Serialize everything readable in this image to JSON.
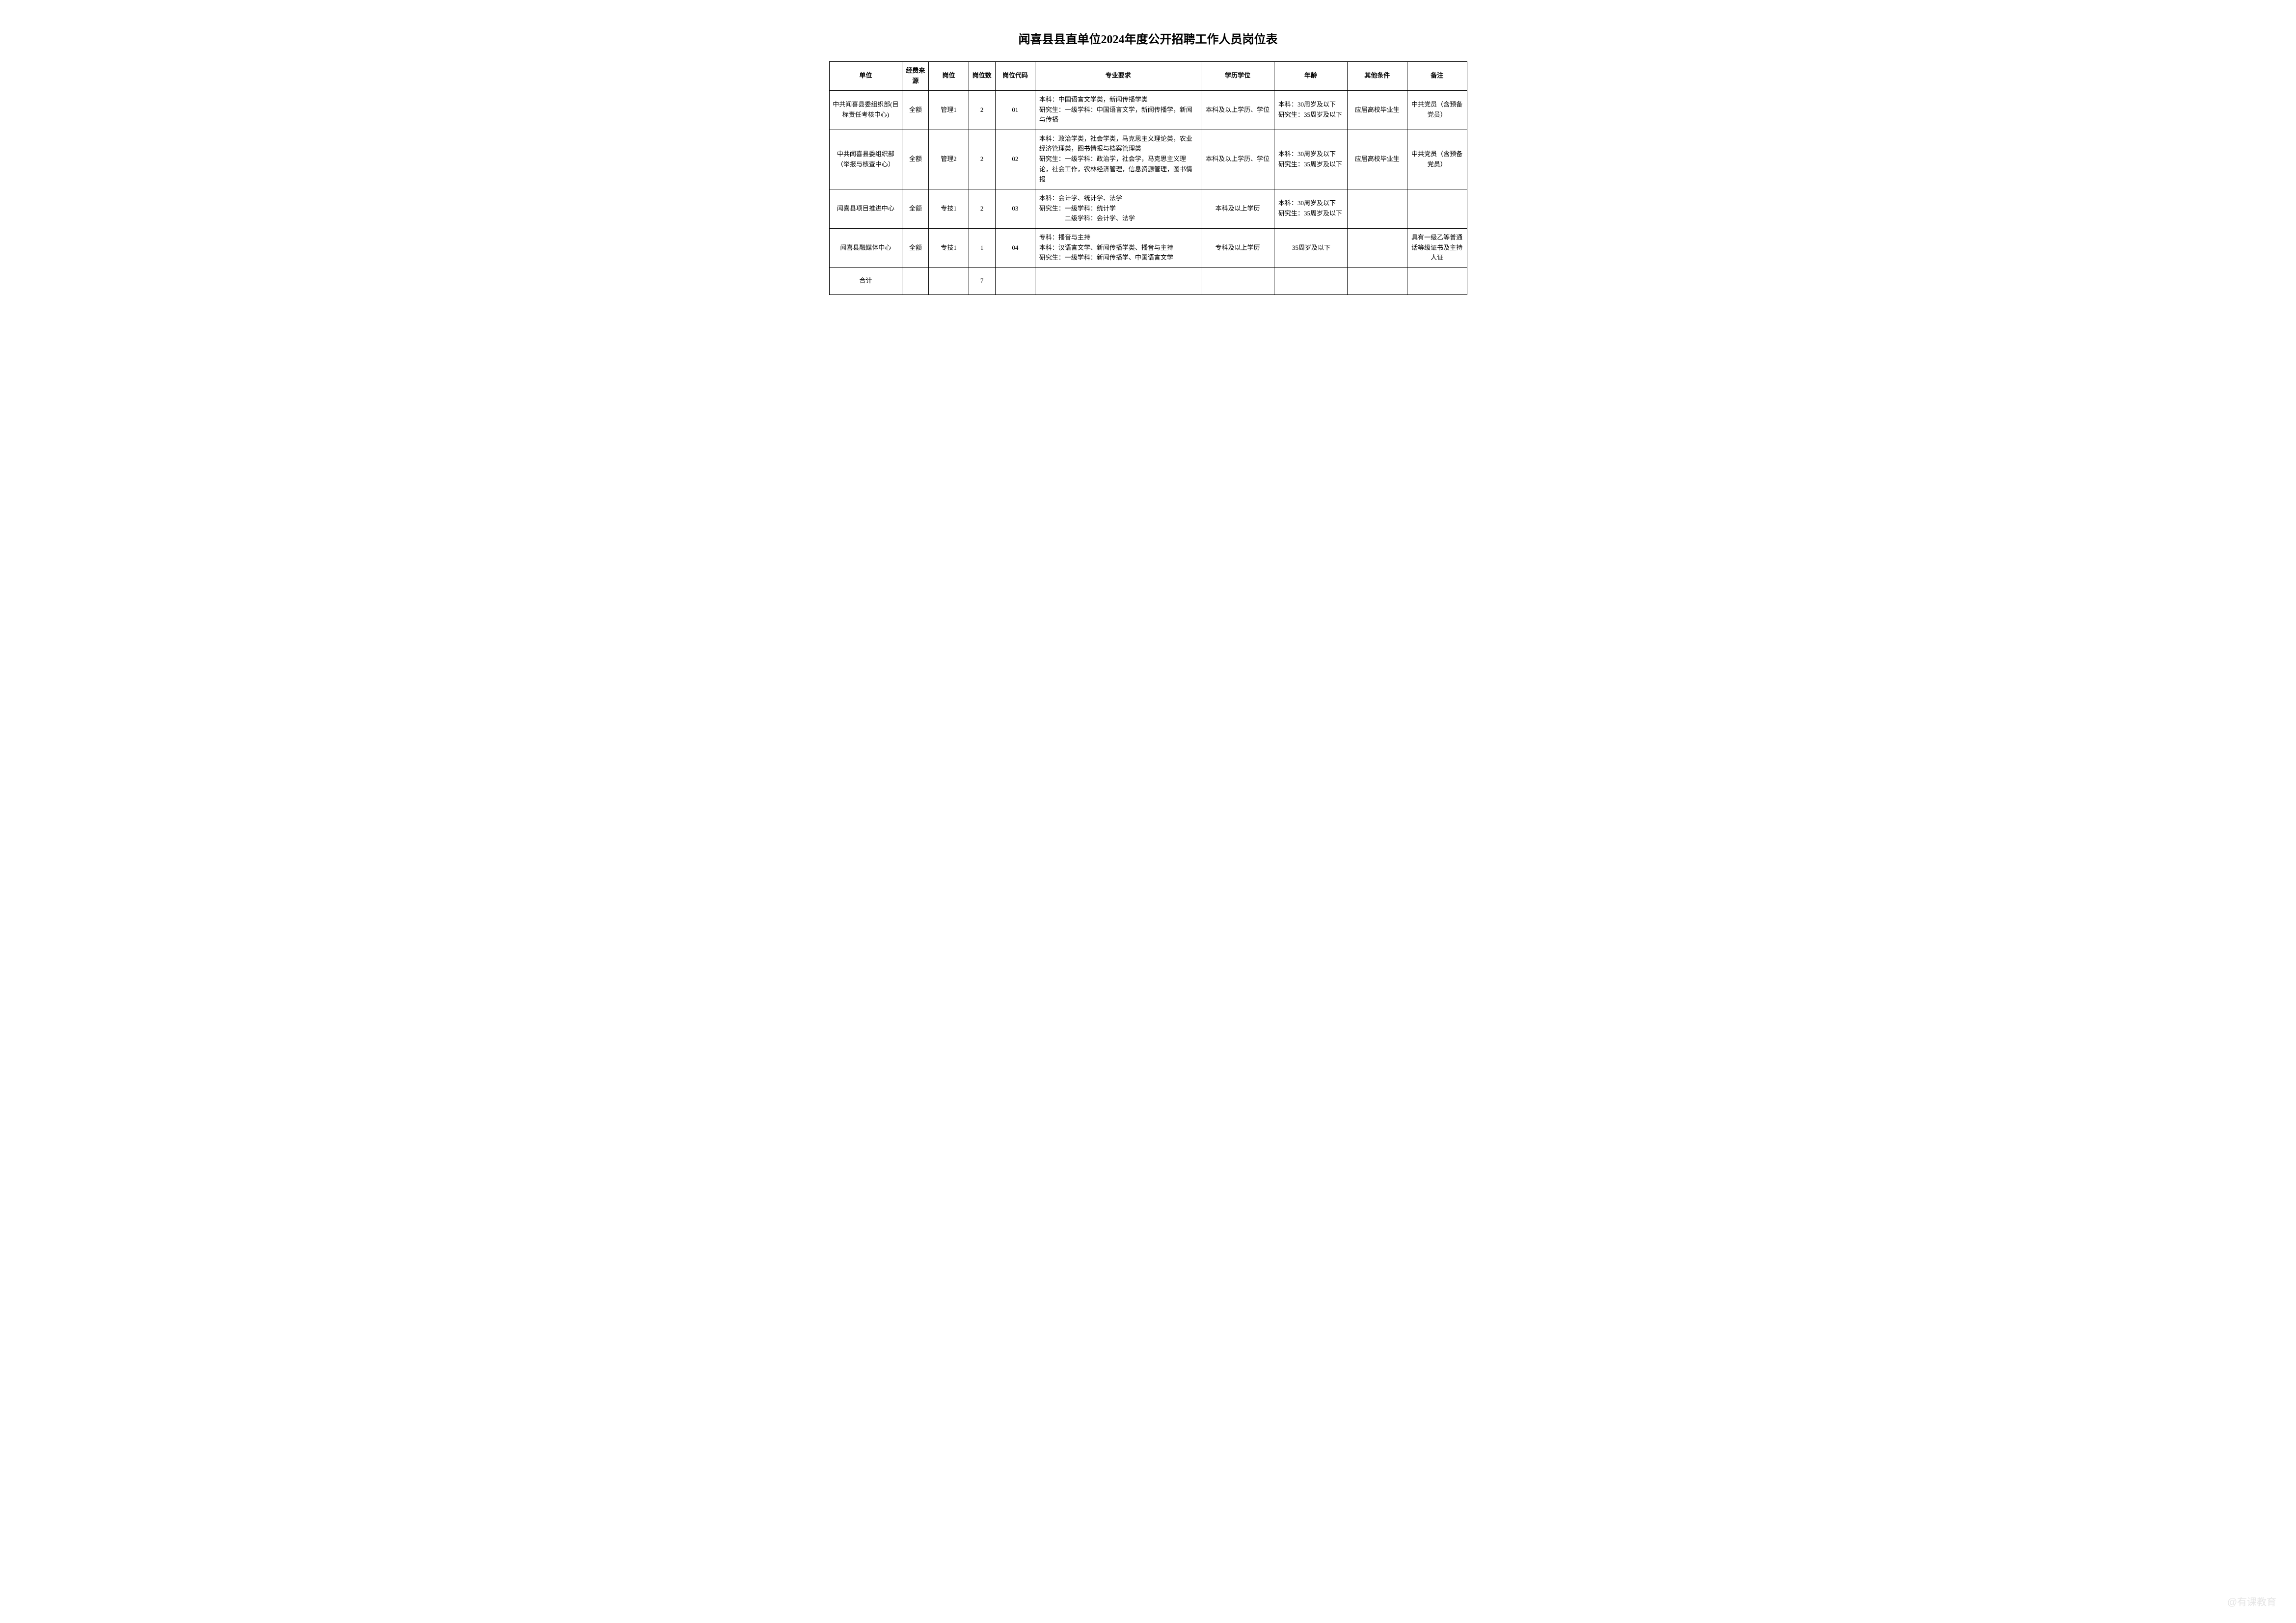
{
  "title": "闻喜县县直单位2024年度公开招聘工作人员岗位表",
  "headers": {
    "unit": "单位",
    "funding": "经费来源",
    "position": "岗位",
    "count": "岗位数",
    "code": "岗位代码",
    "requirements": "专业要求",
    "education": "学历学位",
    "age": "年龄",
    "other": "其他条件",
    "remarks": "备注"
  },
  "rows": [
    {
      "unit": "中共闻喜县委组织部(目标责任考核中心)",
      "funding": "全额",
      "position": "管理1",
      "count": "2",
      "code": "01",
      "requirements": "本科：中国语言文学类，新闻传播学类\n研究生：一级学科：中国语言文学，新闻传播学，新闻与传播",
      "education": "本科及以上学历、学位",
      "age": "本科：30周岁及以下\n研究生：35周岁及以下",
      "other": "应届高校毕业生",
      "remarks": "中共党员（含预备党员）"
    },
    {
      "unit": "中共闻喜县委组织部（举报与核查中心）",
      "funding": "全额",
      "position": "管理2",
      "count": "2",
      "code": "02",
      "requirements": "本科：政治学类，社会学类，马克思主义理论类，农业经济管理类，图书情报与档案管理类\n研究生：一级学科：政治学，社会学，马克思主义理论，社会工作，农林经济管理，信息资源管理，图书情报",
      "education": "本科及以上学历、学位",
      "age": "本科：30周岁及以下\n研究生：35周岁及以下",
      "other": "应届高校毕业生",
      "remarks": "中共党员（含预备党员）"
    },
    {
      "unit": "闻喜县项目推进中心",
      "funding": "全额",
      "position": "专技1",
      "count": "2",
      "code": "03",
      "requirements": "本科：会计学、统计学、法学\n研究生：一级学科：统计学\n　　　　二级学科：会计学、法学",
      "education": "本科及以上学历",
      "age": "本科：30周岁及以下\n研究生：35周岁及以下",
      "other": "",
      "remarks": ""
    },
    {
      "unit": "闻喜县融媒体中心",
      "funding": "全额",
      "position": "专技1",
      "count": "1",
      "code": "04",
      "requirements": "专科：播音与主持\n本科：汉语言文学、新闻传播学类、播音与主持\n研究生：一级学科：新闻传播学、中国语言文学",
      "education": "专科及以上学历",
      "age": "35周岁及以下",
      "other": "",
      "remarks": "具有一级乙等普通话等级证书及主持人证"
    }
  ],
  "total": {
    "label": "合计",
    "count": "7"
  },
  "watermark": "@有课教育",
  "styling": {
    "background_color": "#ffffff",
    "border_color": "#000000",
    "text_color": "#000000",
    "title_fontsize": 24,
    "cell_fontsize": 13,
    "watermark_color": "#cccccc"
  }
}
